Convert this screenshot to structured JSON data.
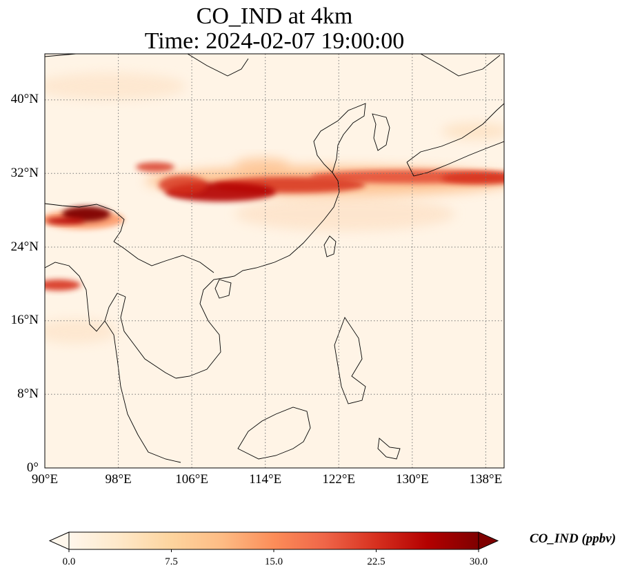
{
  "title": {
    "line1": "CO_IND at 4km",
    "line2": "Time: 2024-02-07 19:00:00"
  },
  "map": {
    "projection": "PlateCarree",
    "extent": {
      "lon": [
        90,
        140
      ],
      "lat": [
        0,
        45
      ]
    },
    "gridlines": "dotted",
    "y_ticks": [
      {
        "value": 40,
        "label": "40°N"
      },
      {
        "value": 32,
        "label": "32°N"
      },
      {
        "value": 24,
        "label": "24°N"
      },
      {
        "value": 16,
        "label": "16°N"
      },
      {
        "value": 8,
        "label": "8°N"
      },
      {
        "value": 0,
        "label": "0°"
      }
    ],
    "x_ticks": [
      {
        "value": 90,
        "label": "90°E"
      },
      {
        "value": 98,
        "label": "98°E"
      },
      {
        "value": 106,
        "label": "106°E"
      },
      {
        "value": 114,
        "label": "114°E"
      },
      {
        "value": 122,
        "label": "122°E"
      },
      {
        "value": 130,
        "label": "130°E"
      },
      {
        "value": 138,
        "label": "138°E"
      }
    ],
    "plumes_ppbv": [
      {
        "region": "east-west band",
        "lon": [
          108,
          140
        ],
        "lat": [
          30,
          33
        ],
        "value": 22
      },
      {
        "region": "sichuan core",
        "lon": [
          103,
          112
        ],
        "lat": [
          29,
          31.5
        ],
        "value": 26
      },
      {
        "region": "eastern tibet/assam",
        "lon": [
          93,
          98
        ],
        "lat": [
          27.5,
          29
        ],
        "value": 30
      },
      {
        "region": "bay of bengal edge",
        "lon": [
          90,
          93
        ],
        "lat": [
          19,
          20.5
        ],
        "value": 20
      }
    ]
  },
  "colorbar": {
    "label": "CO_IND (ppbv)",
    "cmap": "OrRd",
    "min": 0.0,
    "max": 30.0,
    "extend": "both",
    "ticks": [
      "0.0",
      "7.5",
      "15.0",
      "22.5",
      "30.0"
    ],
    "colors": [
      "#fff7ec",
      "#fee8c8",
      "#fdd49e",
      "#fdbb84",
      "#fc8d59",
      "#ef6548",
      "#d7301f",
      "#b30000",
      "#7f0000"
    ]
  }
}
